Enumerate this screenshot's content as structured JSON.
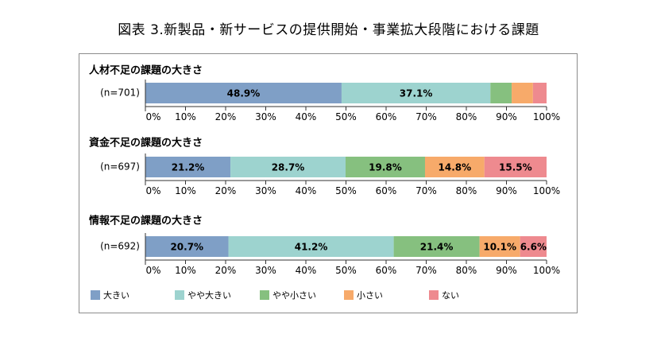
{
  "figure_title": "図表 3.新製品・新サービスの提供開始・事業拡大段階における課題",
  "colors": {
    "大きい": "#7f9fc6",
    "やや大きい": "#9dd3cf",
    "やや小さい": "#86c07f",
    "小さい": "#f7aa6a",
    "ない": "#ee8a8f"
  },
  "legend": [
    "大きい",
    "やや大きい",
    "やや小さい",
    "小さい",
    "ない"
  ],
  "chart_data": [
    {
      "type": "bar",
      "orientation": "horizontal-stacked-100",
      "title": "人材不足の課題の大きさ",
      "category": "(n=701)",
      "xlim": [
        0,
        100
      ],
      "ticks": [
        "0%",
        "10%",
        "20%",
        "30%",
        "40%",
        "50%",
        "60%",
        "70%",
        "80%",
        "90%",
        "100%"
      ],
      "series": [
        {
          "name": "大きい",
          "value": 48.9,
          "label": "48.9%"
        },
        {
          "name": "やや大きい",
          "value": 37.1,
          "label": "37.1%"
        },
        {
          "name": "やや小さい",
          "value": 5.3,
          "label": ""
        },
        {
          "name": "小さい",
          "value": 5.3,
          "label": ""
        },
        {
          "name": "ない",
          "value": 3.4,
          "label": ""
        }
      ]
    },
    {
      "type": "bar",
      "orientation": "horizontal-stacked-100",
      "title": "資金不足の課題の大きさ",
      "category": "(n=697)",
      "xlim": [
        0,
        100
      ],
      "ticks": [
        "0%",
        "10%",
        "20%",
        "30%",
        "40%",
        "50%",
        "60%",
        "70%",
        "80%",
        "90%",
        "100%"
      ],
      "series": [
        {
          "name": "大きい",
          "value": 21.2,
          "label": "21.2%"
        },
        {
          "name": "やや大きい",
          "value": 28.7,
          "label": "28.7%"
        },
        {
          "name": "やや小さい",
          "value": 19.8,
          "label": "19.8%"
        },
        {
          "name": "小さい",
          "value": 14.8,
          "label": "14.8%"
        },
        {
          "name": "ない",
          "value": 15.5,
          "label": "15.5%"
        }
      ]
    },
    {
      "type": "bar",
      "orientation": "horizontal-stacked-100",
      "title": "情報不足の課題の大きさ",
      "category": "(n=692)",
      "xlim": [
        0,
        100
      ],
      "ticks": [
        "0%",
        "10%",
        "20%",
        "30%",
        "40%",
        "50%",
        "60%",
        "70%",
        "80%",
        "90%",
        "100%"
      ],
      "series": [
        {
          "name": "大きい",
          "value": 20.7,
          "label": "20.7%"
        },
        {
          "name": "やや大きい",
          "value": 41.2,
          "label": "41.2%"
        },
        {
          "name": "やや小さい",
          "value": 21.4,
          "label": "21.4%"
        },
        {
          "name": "小さい",
          "value": 10.1,
          "label": "10.1%"
        },
        {
          "name": "ない",
          "value": 6.6,
          "label": "6.6%"
        }
      ]
    }
  ]
}
